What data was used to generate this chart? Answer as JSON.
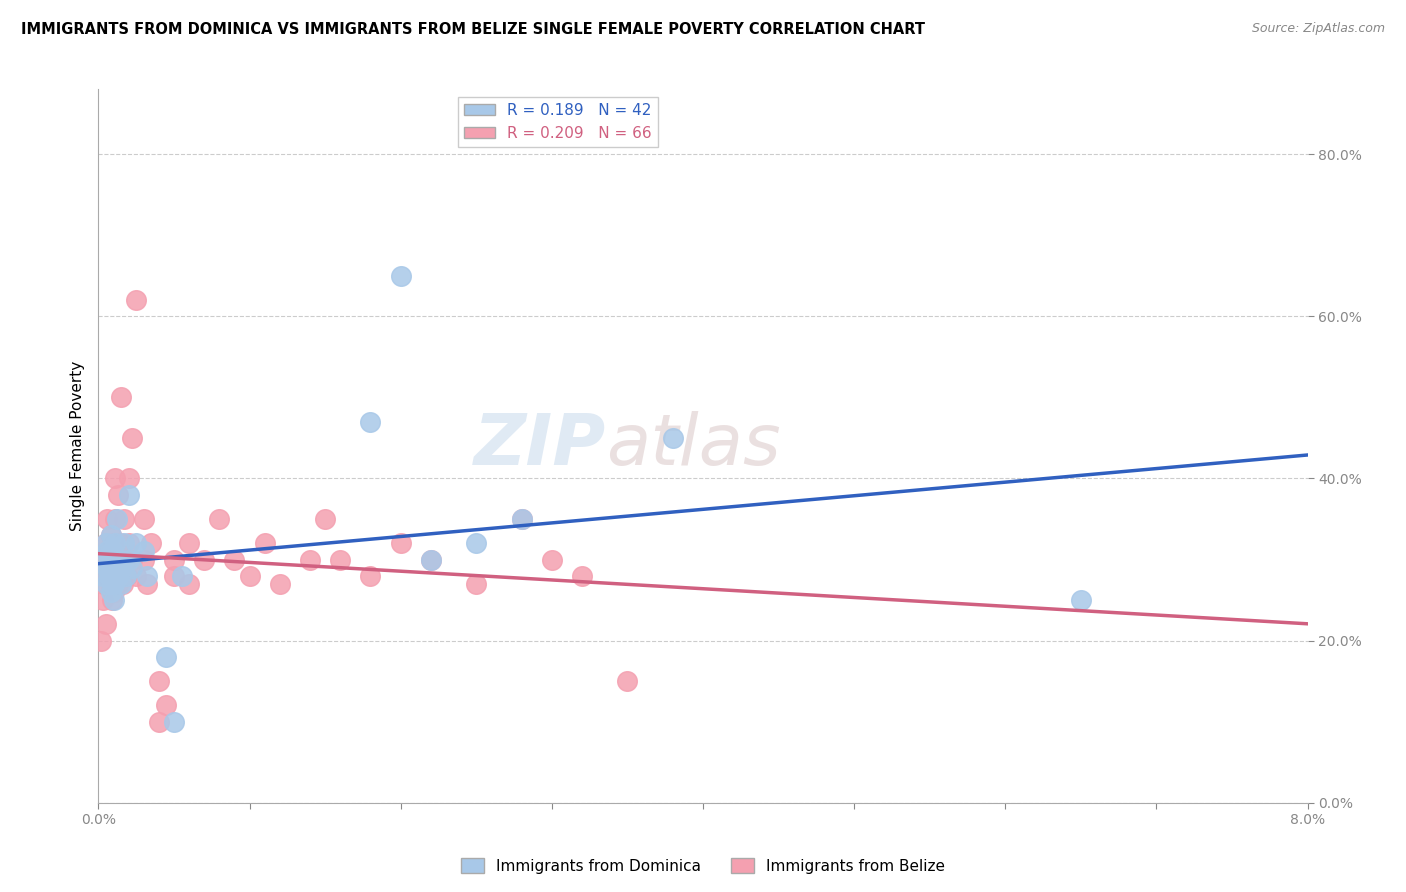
{
  "title": "IMMIGRANTS FROM DOMINICA VS IMMIGRANTS FROM BELIZE SINGLE FEMALE POVERTY CORRELATION CHART",
  "source": "Source: ZipAtlas.com",
  "ylabel": "Single Female Poverty",
  "xlim": [
    0.0,
    0.08
  ],
  "ylim": [
    0.0,
    0.88
  ],
  "dominica_color": "#a8c8e8",
  "belize_color": "#f4a0b0",
  "dominica_line_color": "#3060c0",
  "belize_line_color": "#d06080",
  "watermark": "ZIPatlas",
  "dominica_R": 0.189,
  "dominica_N": 42,
  "belize_R": 0.209,
  "belize_N": 66,
  "dominica_x": [
    0.0003,
    0.0004,
    0.0005,
    0.0005,
    0.0006,
    0.0006,
    0.0007,
    0.0007,
    0.0008,
    0.0008,
    0.0008,
    0.0009,
    0.0009,
    0.001,
    0.001,
    0.001,
    0.001,
    0.0011,
    0.0012,
    0.0012,
    0.0013,
    0.0014,
    0.0015,
    0.0015,
    0.0017,
    0.0018,
    0.002,
    0.002,
    0.0022,
    0.0025,
    0.003,
    0.0032,
    0.0045,
    0.005,
    0.0055,
    0.018,
    0.02,
    0.022,
    0.025,
    0.028,
    0.038,
    0.065
  ],
  "dominica_y": [
    0.28,
    0.3,
    0.27,
    0.32,
    0.29,
    0.31,
    0.28,
    0.3,
    0.26,
    0.29,
    0.33,
    0.27,
    0.31,
    0.28,
    0.3,
    0.25,
    0.27,
    0.32,
    0.29,
    0.35,
    0.28,
    0.3,
    0.27,
    0.29,
    0.32,
    0.28,
    0.38,
    0.3,
    0.29,
    0.32,
    0.31,
    0.28,
    0.18,
    0.1,
    0.28,
    0.47,
    0.65,
    0.3,
    0.32,
    0.35,
    0.45,
    0.25
  ],
  "belize_x": [
    0.0002,
    0.0003,
    0.0004,
    0.0004,
    0.0005,
    0.0005,
    0.0005,
    0.0006,
    0.0006,
    0.0007,
    0.0007,
    0.0008,
    0.0008,
    0.0009,
    0.0009,
    0.001,
    0.001,
    0.001,
    0.001,
    0.0011,
    0.0011,
    0.0012,
    0.0012,
    0.0013,
    0.0013,
    0.0014,
    0.0015,
    0.0015,
    0.0016,
    0.0017,
    0.0018,
    0.0019,
    0.002,
    0.002,
    0.0022,
    0.0022,
    0.0025,
    0.0025,
    0.003,
    0.003,
    0.0032,
    0.0035,
    0.004,
    0.004,
    0.0045,
    0.005,
    0.005,
    0.006,
    0.006,
    0.007,
    0.008,
    0.009,
    0.01,
    0.011,
    0.012,
    0.014,
    0.015,
    0.016,
    0.018,
    0.02,
    0.022,
    0.025,
    0.028,
    0.03,
    0.032,
    0.035
  ],
  "belize_y": [
    0.2,
    0.25,
    0.27,
    0.3,
    0.28,
    0.32,
    0.22,
    0.3,
    0.35,
    0.28,
    0.31,
    0.27,
    0.33,
    0.25,
    0.29,
    0.28,
    0.3,
    0.32,
    0.26,
    0.35,
    0.4,
    0.28,
    0.3,
    0.27,
    0.38,
    0.32,
    0.29,
    0.5,
    0.27,
    0.35,
    0.3,
    0.28,
    0.32,
    0.4,
    0.3,
    0.45,
    0.62,
    0.28,
    0.3,
    0.35,
    0.27,
    0.32,
    0.15,
    0.1,
    0.12,
    0.3,
    0.28,
    0.32,
    0.27,
    0.3,
    0.35,
    0.3,
    0.28,
    0.32,
    0.27,
    0.3,
    0.35,
    0.3,
    0.28,
    0.32,
    0.3,
    0.27,
    0.35,
    0.3,
    0.28,
    0.15
  ]
}
